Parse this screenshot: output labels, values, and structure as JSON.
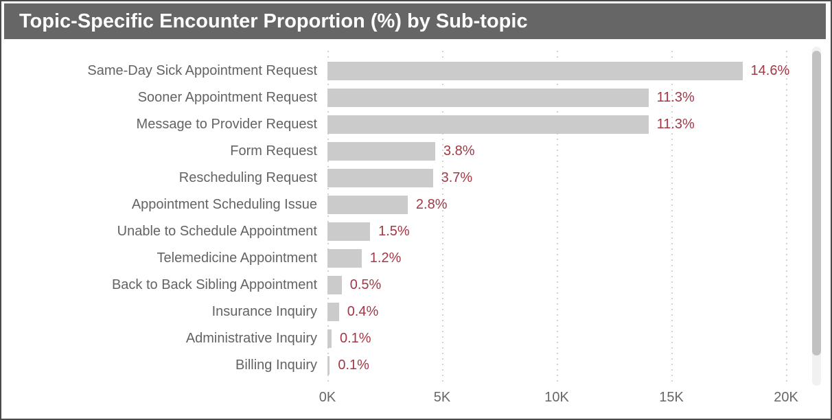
{
  "title": "Topic-Specific Encounter Proportion (%) by Sub-topic",
  "chart_data": {
    "type": "bar",
    "orientation": "horizontal",
    "title": "Topic-Specific Encounter Proportion (%) by Sub-topic",
    "categories": [
      "Same-Day Sick Appointment Request",
      "Sooner Appointment Request",
      "Message to Provider Request",
      "Form Request",
      "Rescheduling Request",
      "Appointment Scheduling Issue",
      "Unable to Schedule Appointment",
      "Telemedicine Appointment",
      "Back to Back Sibling Appointment",
      "Insurance Inquiry",
      "Administrative Inquiry",
      "Billing Inquiry"
    ],
    "values_encounters": [
      18100,
      14000,
      14000,
      4700,
      4600,
      3500,
      1860,
      1490,
      620,
      500,
      180,
      100
    ],
    "percents": [
      14.6,
      11.3,
      11.3,
      3.8,
      3.7,
      2.8,
      1.5,
      1.2,
      0.5,
      0.4,
      0.1,
      0.1
    ],
    "percent_labels": [
      "14.6%",
      "11.3%",
      "11.3%",
      "3.8%",
      "3.7%",
      "2.8%",
      "1.5%",
      "1.2%",
      "0.5%",
      "0.4%",
      "0.1%",
      "0.1%"
    ],
    "x_ticks": [
      "0K",
      "5K",
      "10K",
      "15K",
      "20K"
    ],
    "x_tick_values": [
      0,
      5000,
      10000,
      15000,
      20000
    ],
    "xlim": [
      0,
      20000
    ],
    "xlabel": "",
    "ylabel": "",
    "gridlines": "vertical-dotted",
    "legend": "none"
  },
  "colors": {
    "title_bg": "#666666",
    "title_text": "#ffffff",
    "bar_fill": "#cbcbcb",
    "data_label": "#a33745",
    "category_text": "#636363",
    "axis_text": "#666666",
    "gridline": "#d2d2d2",
    "frame_border": "#4a4a4a",
    "scrollbar_thumb": "#c1c1c1",
    "scrollbar_track": "#f1f1f1"
  },
  "scrollbar": {
    "present": true
  }
}
